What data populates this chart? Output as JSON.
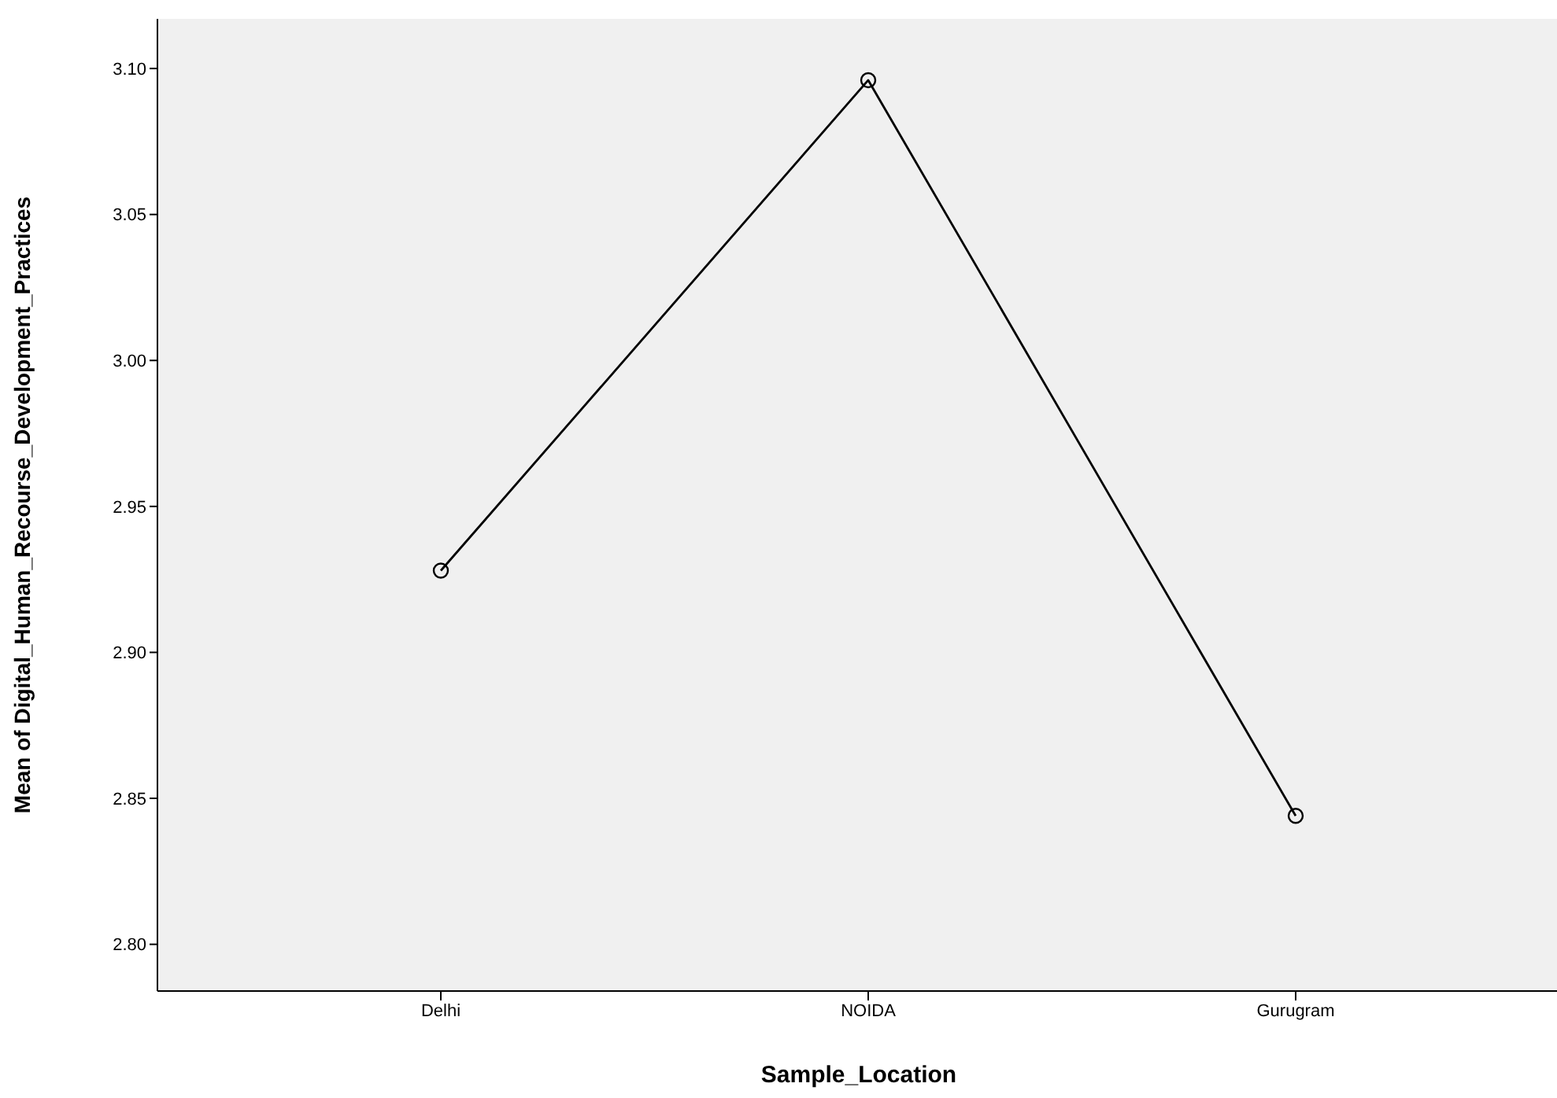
{
  "chart_data": {
    "type": "line",
    "xlabel": "Sample_Location",
    "ylabel": "Mean of Digital_Human_Recourse_Development_Practices",
    "categories": [
      "Delhi",
      "NOIDA",
      "Gurugram"
    ],
    "series": [
      {
        "color": "#000000",
        "values": [
          2.928,
          3.096,
          2.844
        ]
      }
    ],
    "ylim": [
      2.784,
      3.117
    ],
    "yticks": [
      {
        "value": 2.8,
        "label": "2.80"
      },
      {
        "value": 2.85,
        "label": "2.85"
      },
      {
        "value": 2.9,
        "label": "2.90"
      },
      {
        "value": 2.95,
        "label": "2.95"
      },
      {
        "value": 3.0,
        "label": "3.00"
      },
      {
        "value": 3.05,
        "label": "3.05"
      },
      {
        "value": 3.1,
        "label": "3.10"
      }
    ],
    "grid": false,
    "legend": false,
    "marker": "circle",
    "line_style": "solid"
  }
}
